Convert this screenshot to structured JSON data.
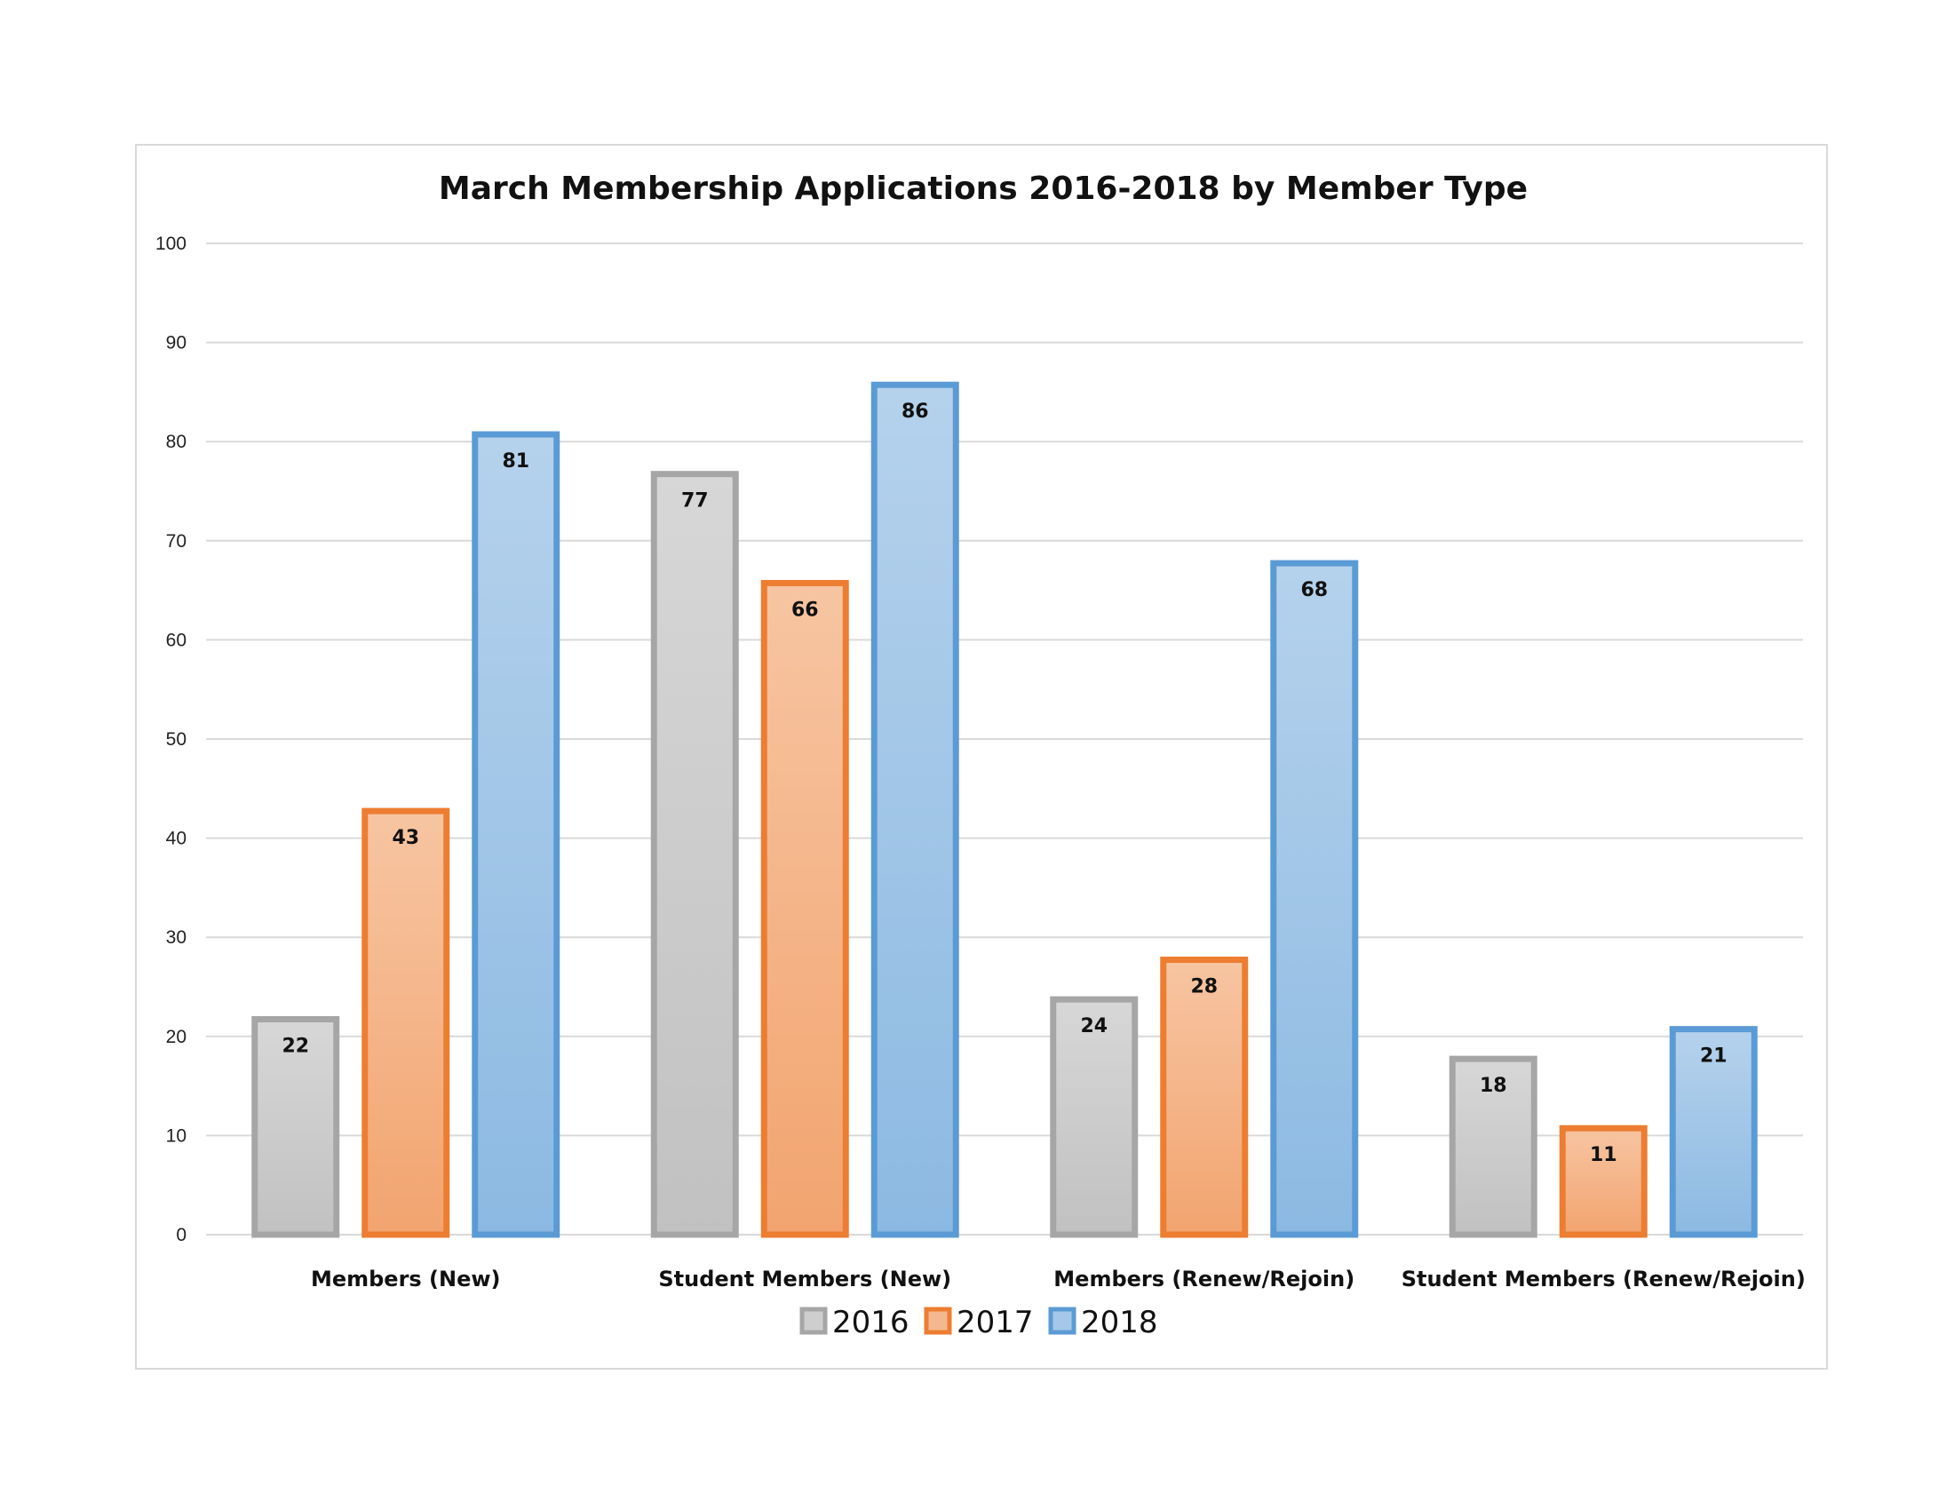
{
  "chart_data": {
    "type": "bar",
    "title": "March Membership Applications 2016-2018 by Member Type",
    "xlabel": "",
    "ylabel": "",
    "categories": [
      "Members (New)",
      "Student Members (New)",
      "Members (Renew/Rejoin)",
      "Student Members (Renew/Rejoin)"
    ],
    "series": [
      {
        "name": "2016",
        "values": [
          22,
          77,
          24,
          18
        ],
        "color": "#a6a6a6"
      },
      {
        "name": "2017",
        "values": [
          43,
          66,
          28,
          11
        ],
        "color": "#ed7d31"
      },
      {
        "name": "2018",
        "values": [
          81,
          86,
          68,
          21
        ],
        "color": "#5b9bd5"
      }
    ],
    "ylim": [
      0,
      100
    ],
    "yticks": [
      "0",
      "10",
      "20",
      "30",
      "40",
      "50",
      "60",
      "70",
      "80",
      "90",
      "100"
    ],
    "grid": true,
    "legend": "bottom"
  }
}
